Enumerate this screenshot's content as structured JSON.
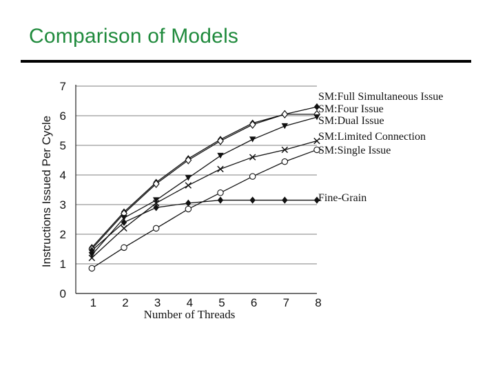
{
  "slide": {
    "title": "Comparison of Models"
  },
  "chart_data": {
    "type": "line",
    "title": "",
    "xlabel": "Number of Threads",
    "ylabel": "Instructions Issued Per Cycle",
    "x": [
      1,
      2,
      3,
      4,
      5,
      6,
      7,
      8
    ],
    "xlim": [
      0.5,
      8
    ],
    "ylim": [
      0,
      7
    ],
    "yticks": [
      0,
      1,
      2,
      3,
      4,
      5,
      6,
      7
    ],
    "grid": true,
    "legend": "right of plot, labels placed at line ends",
    "series": [
      {
        "name": "SM:Full Simultaneous Issue",
        "marker": "diamond",
        "values": [
          1.55,
          2.75,
          3.75,
          4.55,
          5.2,
          5.75,
          6.05,
          6.3
        ]
      },
      {
        "name": "SM:Four Issue",
        "marker": "diamond-open",
        "values": [
          1.5,
          2.7,
          3.7,
          4.5,
          5.15,
          5.7,
          6.05,
          6.05
        ]
      },
      {
        "name": "SM:Dual Issue",
        "marker": "triangle-down",
        "values": [
          1.3,
          2.55,
          3.15,
          3.9,
          4.65,
          5.2,
          5.65,
          5.95
        ]
      },
      {
        "name": "SM:Limited Connection",
        "marker": "x",
        "values": [
          1.2,
          2.2,
          3.05,
          3.65,
          4.2,
          4.6,
          4.85,
          5.15
        ]
      },
      {
        "name": "SM:Single Issue",
        "marker": "circle-open",
        "values": [
          0.85,
          1.55,
          2.2,
          2.85,
          3.4,
          3.95,
          4.45,
          4.85
        ]
      },
      {
        "name": "Fine-Grain",
        "marker": "diamond",
        "values": [
          1.45,
          2.4,
          2.9,
          3.05,
          3.15,
          3.15,
          3.15,
          3.15
        ]
      }
    ]
  }
}
